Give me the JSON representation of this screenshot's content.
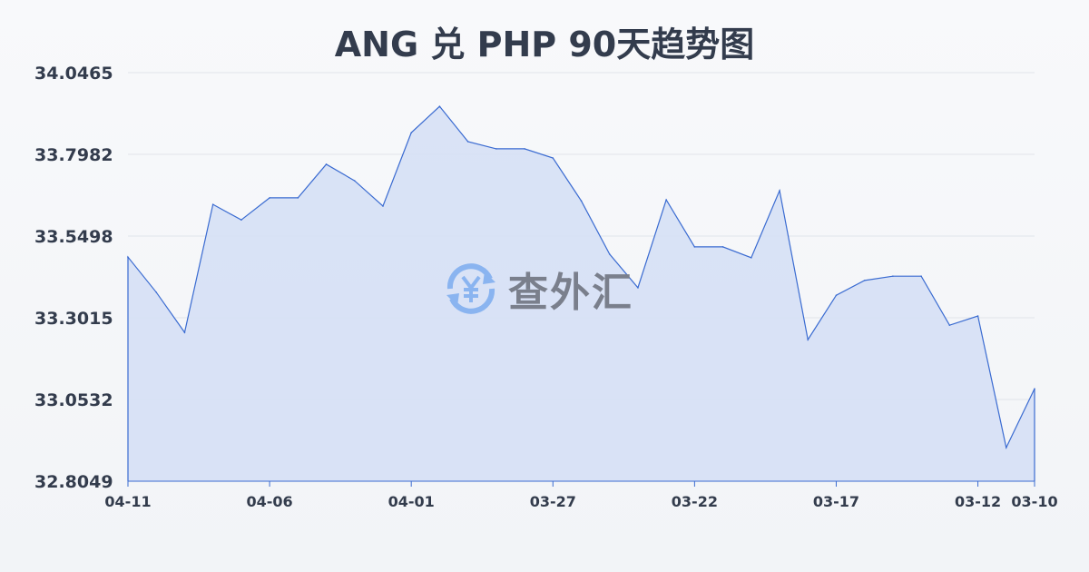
{
  "chart_data": {
    "type": "area",
    "title": "ANG 兑 PHP 90天趋势图",
    "xlabel": "",
    "ylabel": "",
    "ylim": [
      32.8049,
      34.0465
    ],
    "yticks": [
      "34.0465",
      "33.7982",
      "33.5498",
      "33.3015",
      "33.0532",
      "32.8049"
    ],
    "xticks": [
      "04-11",
      "04-06",
      "04-01",
      "03-27",
      "03-22",
      "03-17",
      "03-12",
      "03-10"
    ],
    "grid": true,
    "x": [
      "04-11",
      "04-10",
      "04-09",
      "04-08",
      "04-07",
      "04-06",
      "04-05",
      "04-04",
      "04-03",
      "04-02",
      "04-01",
      "03-31",
      "03-30",
      "03-29",
      "03-28",
      "03-27",
      "03-26",
      "03-25",
      "03-24",
      "03-23",
      "03-22",
      "03-21",
      "03-20",
      "03-19",
      "03-18",
      "03-17",
      "03-16",
      "03-15",
      "03-14",
      "03-13",
      "03-12",
      "03-11",
      "03-10"
    ],
    "values": [
      33.486,
      33.379,
      33.257,
      33.646,
      33.599,
      33.666,
      33.666,
      33.768,
      33.718,
      33.641,
      33.864,
      33.944,
      33.837,
      33.815,
      33.815,
      33.787,
      33.657,
      33.495,
      33.393,
      33.66,
      33.517,
      33.517,
      33.484,
      33.688,
      33.235,
      33.37,
      33.415,
      33.428,
      33.428,
      33.279,
      33.307,
      32.907,
      33.086
    ],
    "colors": {
      "line": "#3a6bd1",
      "fill": "#d6e0f5"
    }
  },
  "watermark": {
    "text": "查外汇",
    "icon": "yen-exchange-icon"
  }
}
